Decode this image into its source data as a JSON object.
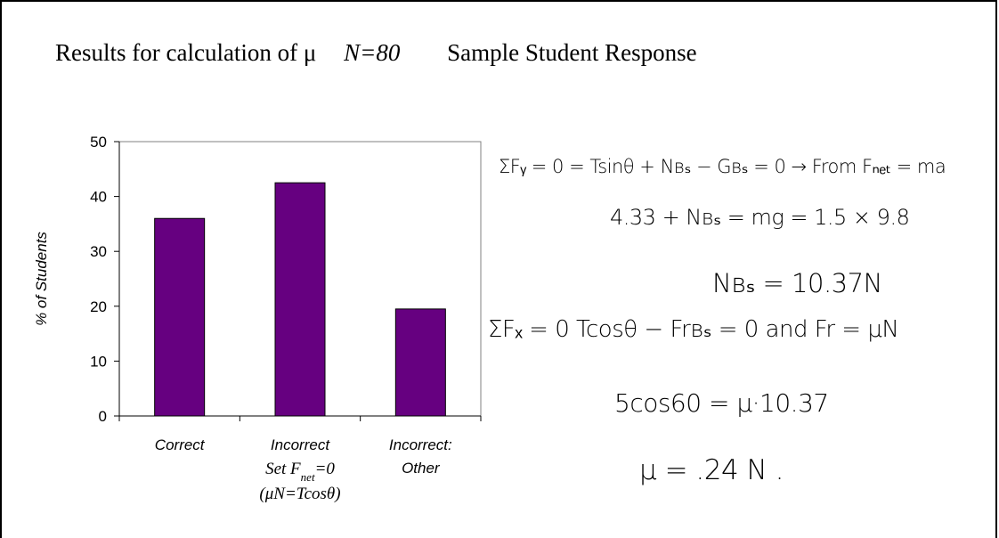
{
  "heading": {
    "title": "Results for calculation of μ",
    "n": "N=80",
    "sample": "Sample Student Response"
  },
  "colors": {
    "bar": "#660080",
    "axis": "#000000"
  },
  "chart_data": {
    "type": "bar",
    "categories": [
      "Correct",
      "Incorrect Set F_net=0 (μN=Tcosθ)",
      "Incorrect: Other"
    ],
    "values": [
      36,
      42.5,
      19.5
    ],
    "ylabel": "% of Students",
    "ylim": [
      0,
      50
    ],
    "yticks": [
      "0",
      "10",
      "20",
      "30",
      "40",
      "50"
    ],
    "grid": false,
    "tick_labels": {
      "c0": "Correct",
      "c1_line1": "Incorrect",
      "c1_line2_a": "Set F",
      "c1_line2_sub": "net",
      "c1_line2_b": "=0",
      "c1_line3": "(μN=Tcosθ)",
      "c2_line1": "Incorrect:",
      "c2_line2": "Other"
    }
  },
  "handwriting": {
    "line1": "ΣFᵧ = 0 = Tsinθ + Nʙₛ − Gʙₛ = 0  → From Fₙₑₜ = ma",
    "line2": "4.33 + Nʙₛ = mg = 1.5 × 9.8",
    "line3": "Nʙₛ = 10.37N",
    "line4": "ΣFₓ = 0   Tcosθ − Frʙₛ = 0   and Fr = μN",
    "line5": "5cos60 = μ·10.37",
    "line6": "μ = .24 N   ."
  }
}
